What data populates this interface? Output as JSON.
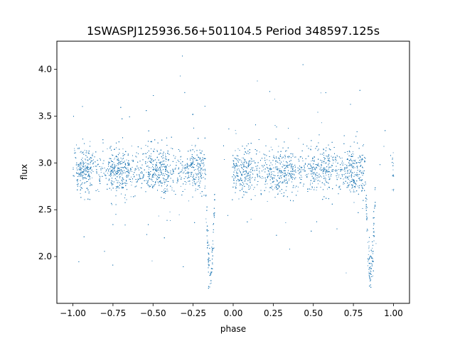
{
  "chart_data": {
    "type": "scatter",
    "title": "1SWASPJ125936.56+501104.5 Period 348597.125s",
    "xlabel": "phase",
    "ylabel": "flux",
    "xlim": [
      -1.1,
      1.1
    ],
    "ylim": [
      1.5,
      4.3
    ],
    "x_ticks": [
      -1.0,
      -0.75,
      -0.5,
      -0.25,
      0.0,
      0.25,
      0.5,
      0.75,
      1.0
    ],
    "x_tick_labels": [
      "−1.00",
      "−0.75",
      "−0.50",
      "−0.25",
      "0.00",
      "0.25",
      "0.50",
      "0.75",
      "1.00"
    ],
    "y_ticks": [
      2.0,
      2.5,
      3.0,
      3.5,
      4.0
    ],
    "y_tick_labels": [
      "2.0",
      "2.5",
      "3.0",
      "3.5",
      "4.0"
    ],
    "grid": false,
    "series": [
      {
        "color": "#1f77b4",
        "x_range": [
          -1.0,
          1.0
        ],
        "baseline_flux": 2.92,
        "baseline_scatter": 0.12,
        "dense_groups": [
          [
            -0.975,
            -0.885
          ],
          [
            -0.775,
            -0.655
          ],
          [
            -0.54,
            -0.4
          ],
          [
            -0.29,
            -0.19
          ],
          [
            0.0,
            0.11
          ],
          [
            0.22,
            0.36
          ],
          [
            0.48,
            0.6
          ],
          [
            0.71,
            0.81
          ],
          [
            0.97,
            1.0
          ]
        ],
        "gaps": [
          [
            -0.165,
            -0.01
          ],
          [
            0.835,
            0.99
          ]
        ],
        "eclipses": [
          {
            "phase": -0.145,
            "min_flux": 1.85
          },
          {
            "phase": 0.855,
            "min_flux": 1.85
          }
        ],
        "flux_max": 4.15,
        "flux_min": 1.65,
        "approx_point_count": 14000
      }
    ]
  }
}
